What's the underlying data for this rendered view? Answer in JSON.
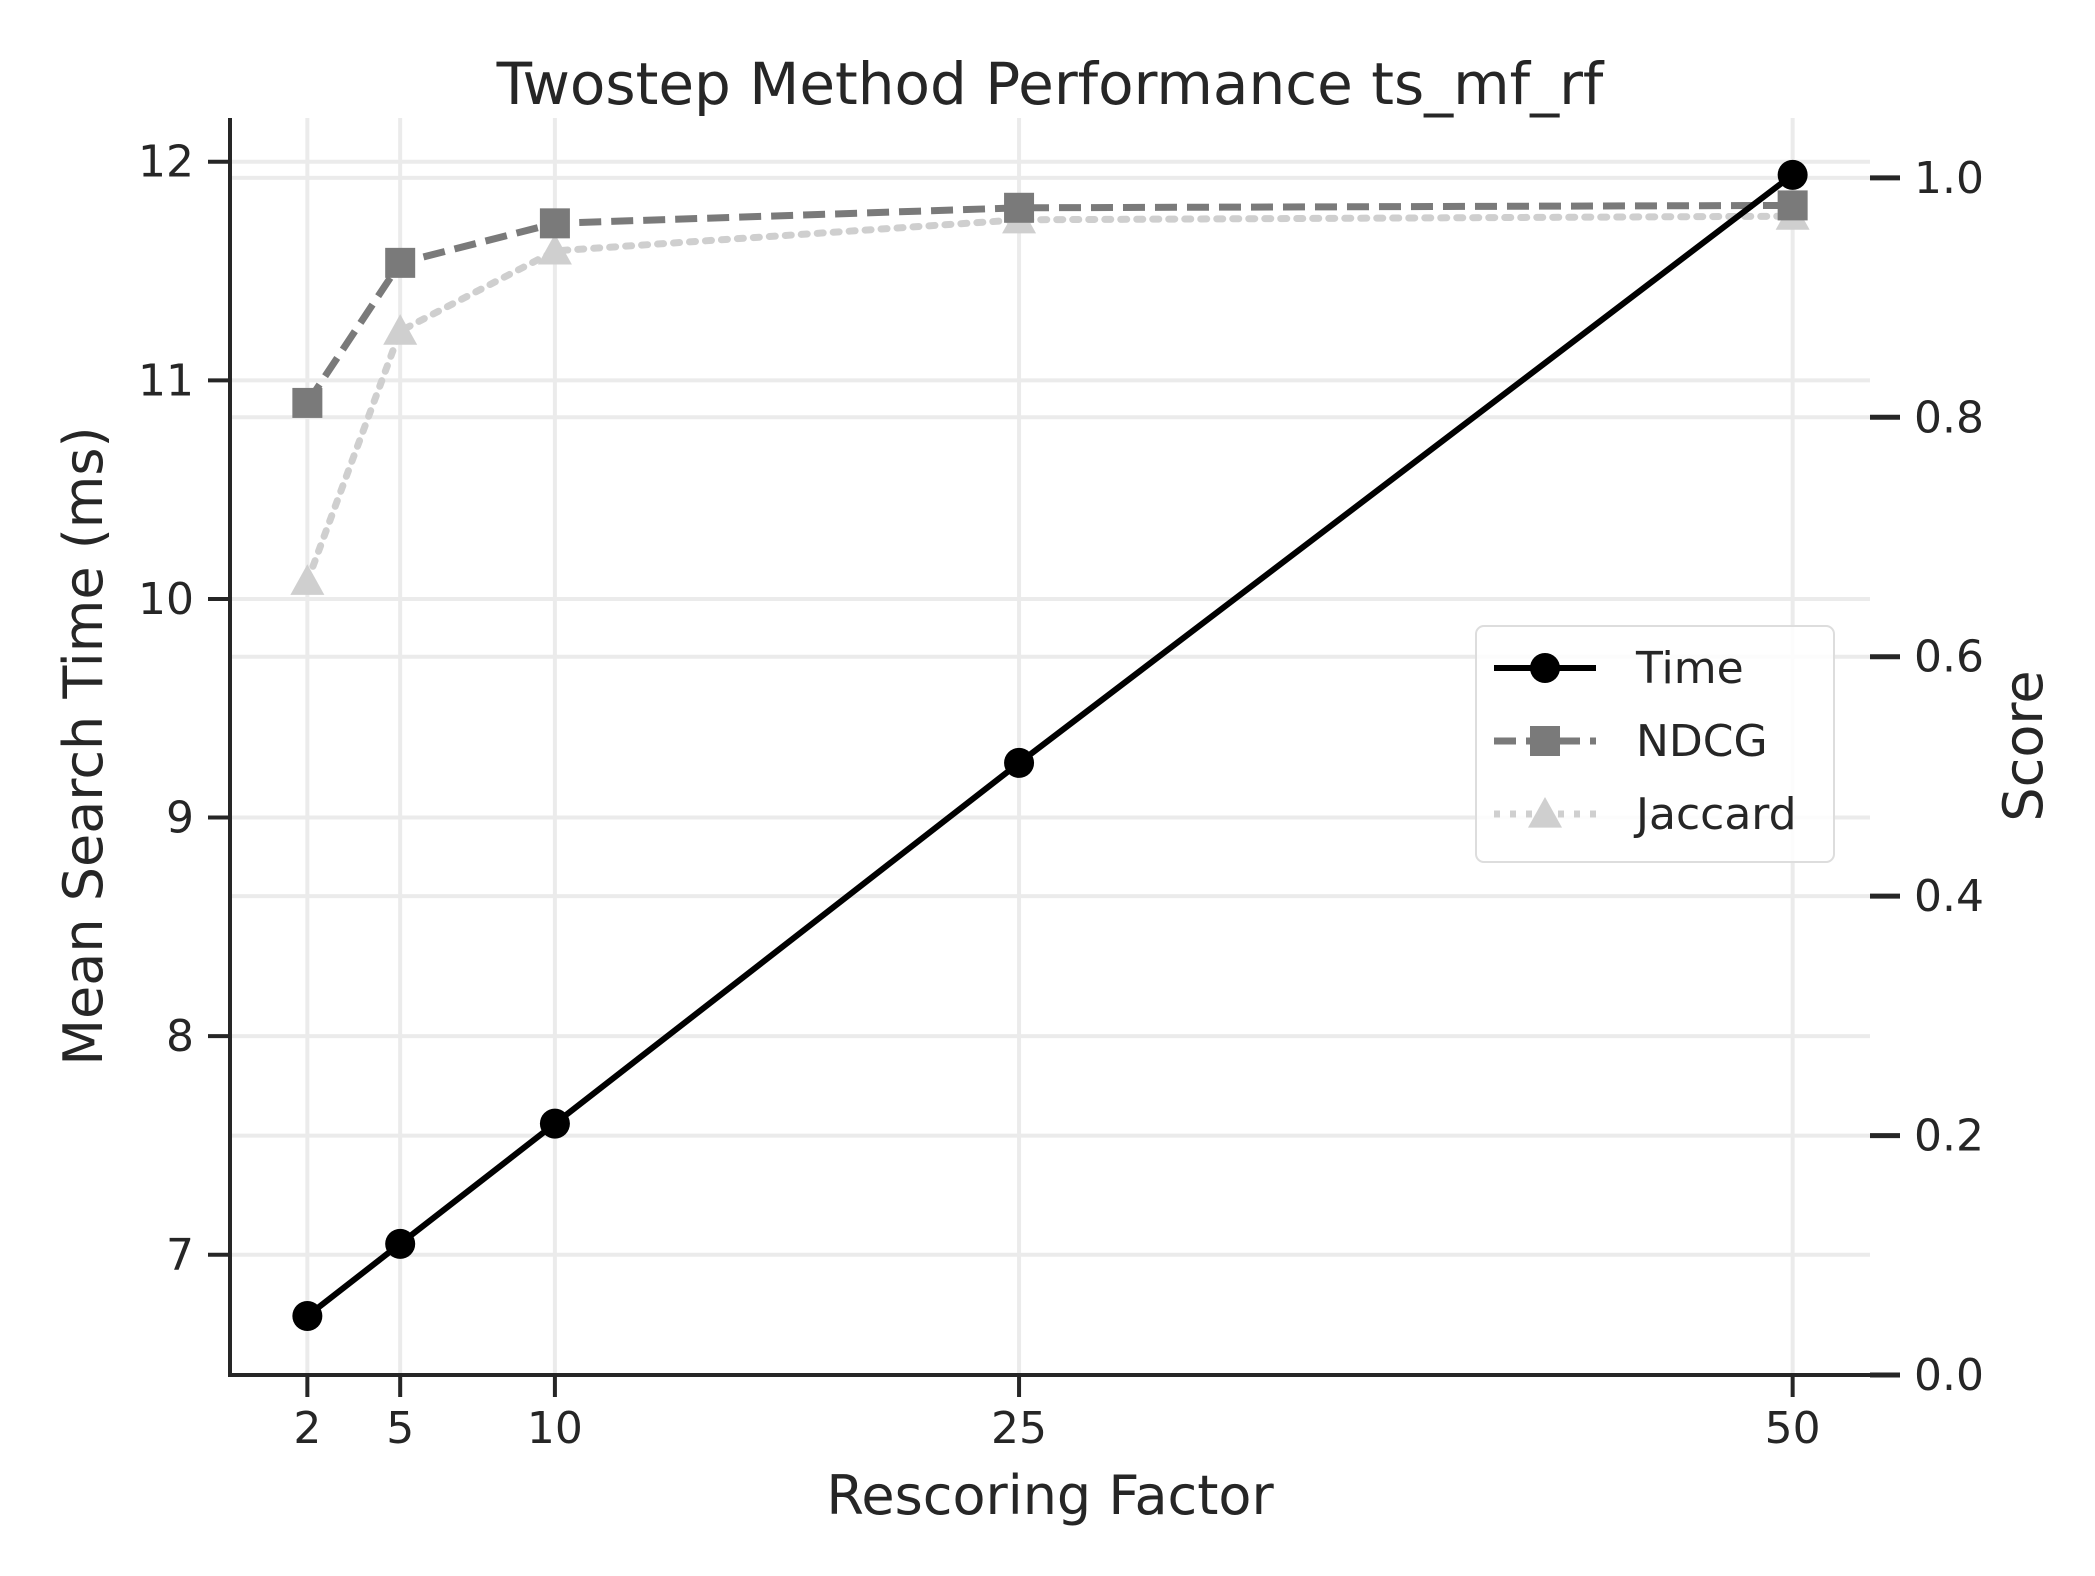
{
  "chart_data": {
    "type": "line",
    "title": "Twostep Method Performance ts_mf_rf",
    "xlabel": "Rescoring Factor",
    "ylabel": "Mean Search Time (ms)",
    "y2label": "Score",
    "x": [
      2,
      5,
      10,
      25,
      50
    ],
    "x_tick_labels": [
      "2",
      "5",
      "10",
      "25",
      "50"
    ],
    "xlim": [
      -0.5,
      52.5
    ],
    "ylim": [
      6.45,
      12.2
    ],
    "y_ticks": [
      7,
      8,
      9,
      10,
      11,
      12
    ],
    "y_tick_labels": [
      "7",
      "8",
      "9",
      "10",
      "11",
      "12"
    ],
    "y2lim": [
      0.0,
      1.05
    ],
    "y2_ticks": [
      0.0,
      0.2,
      0.4,
      0.6,
      0.8,
      1.0
    ],
    "y2_tick_labels": [
      "0.0",
      "0.2",
      "0.4",
      "0.6",
      "0.8",
      "1.0"
    ],
    "grid": true,
    "legend_position": "center-right",
    "series": [
      {
        "name": "Time",
        "axis": "left",
        "values": [
          6.72,
          7.05,
          7.6,
          9.25,
          11.94
        ],
        "color": "#000000",
        "marker": "circle",
        "line_style": "solid"
      },
      {
        "name": "NDCG",
        "axis": "right",
        "values": [
          0.812,
          0.929,
          0.962,
          0.975,
          0.977
        ],
        "color": "#7a7a7a",
        "marker": "square",
        "line_style": "dashed"
      },
      {
        "name": "Jaccard",
        "axis": "right",
        "values": [
          0.663,
          0.872,
          0.939,
          0.965,
          0.968
        ],
        "color": "#cfcfcf",
        "marker": "triangle",
        "line_style": "dotted"
      }
    ]
  }
}
